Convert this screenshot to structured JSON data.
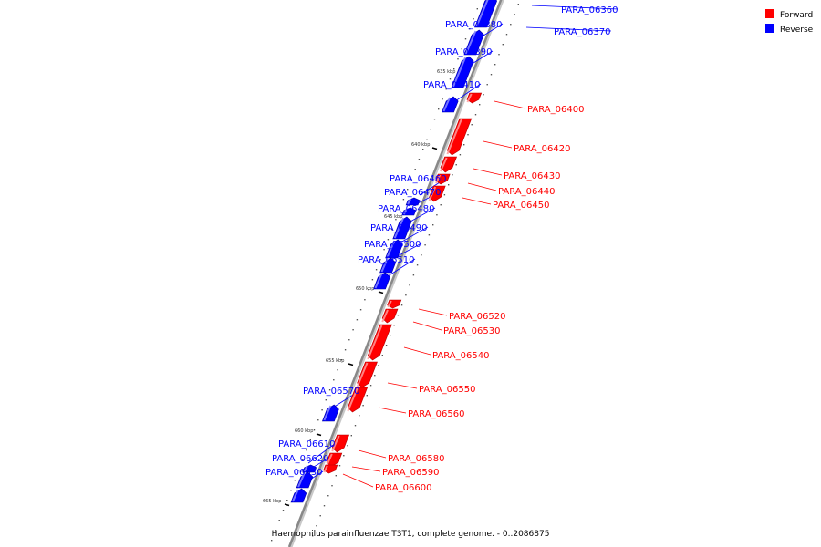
{
  "caption": "Haemophilus parainfluenzae T3T1, complete genome. - 0..2086875",
  "legend": {
    "forward_label": "Forward",
    "reverse_label": "Reverse",
    "forward_color": "#ff0000",
    "reverse_color": "#0000ff"
  },
  "colors": {
    "forward": "#ff0000",
    "forward_light": "#ff9a9a",
    "forward_dark": "#b80000",
    "reverse": "#0000ff",
    "reverse_light": "#8a8aff",
    "reverse_dark": "#0000a8",
    "backbone": "#888888"
  },
  "kbp_marks": [
    "635 kbp",
    "640 kbp",
    "645 kbp",
    "650 kbp",
    "655 kbp",
    "660 kbp",
    "665 kbp"
  ],
  "genes": [
    {
      "name": "PARA_06360",
      "strand": "reverse"
    },
    {
      "name": "PARA_06370",
      "strand": "reverse"
    },
    {
      "name": "PARA_06380",
      "strand": "reverse"
    },
    {
      "name": "PARA_06390",
      "strand": "reverse"
    },
    {
      "name": "PARA_06400",
      "strand": "forward"
    },
    {
      "name": "PARA_06410",
      "strand": "reverse"
    },
    {
      "name": "PARA_06420",
      "strand": "forward"
    },
    {
      "name": "PARA_06430",
      "strand": "forward"
    },
    {
      "name": "PARA_06440",
      "strand": "forward"
    },
    {
      "name": "PARA_06450",
      "strand": "forward"
    },
    {
      "name": "PARA_06460",
      "strand": "reverse"
    },
    {
      "name": "PARA_06470",
      "strand": "reverse"
    },
    {
      "name": "PARA_06480",
      "strand": "reverse"
    },
    {
      "name": "PARA_06490",
      "strand": "reverse"
    },
    {
      "name": "PARA_06500",
      "strand": "reverse"
    },
    {
      "name": "PARA_06510",
      "strand": "reverse"
    },
    {
      "name": "PARA_06520",
      "strand": "forward"
    },
    {
      "name": "PARA_06530",
      "strand": "forward"
    },
    {
      "name": "PARA_06540",
      "strand": "forward"
    },
    {
      "name": "PARA_06550",
      "strand": "forward"
    },
    {
      "name": "PARA_06560",
      "strand": "forward"
    },
    {
      "name": "PARA_06570",
      "strand": "reverse"
    },
    {
      "name": "PARA_06580",
      "strand": "forward"
    },
    {
      "name": "PARA_06590",
      "strand": "forward"
    },
    {
      "name": "PARA_06600",
      "strand": "forward"
    },
    {
      "name": "PARA_06610",
      "strand": "reverse"
    },
    {
      "name": "PARA_06620",
      "strand": "reverse"
    },
    {
      "name": "PARA_06630",
      "strand": "reverse"
    }
  ]
}
